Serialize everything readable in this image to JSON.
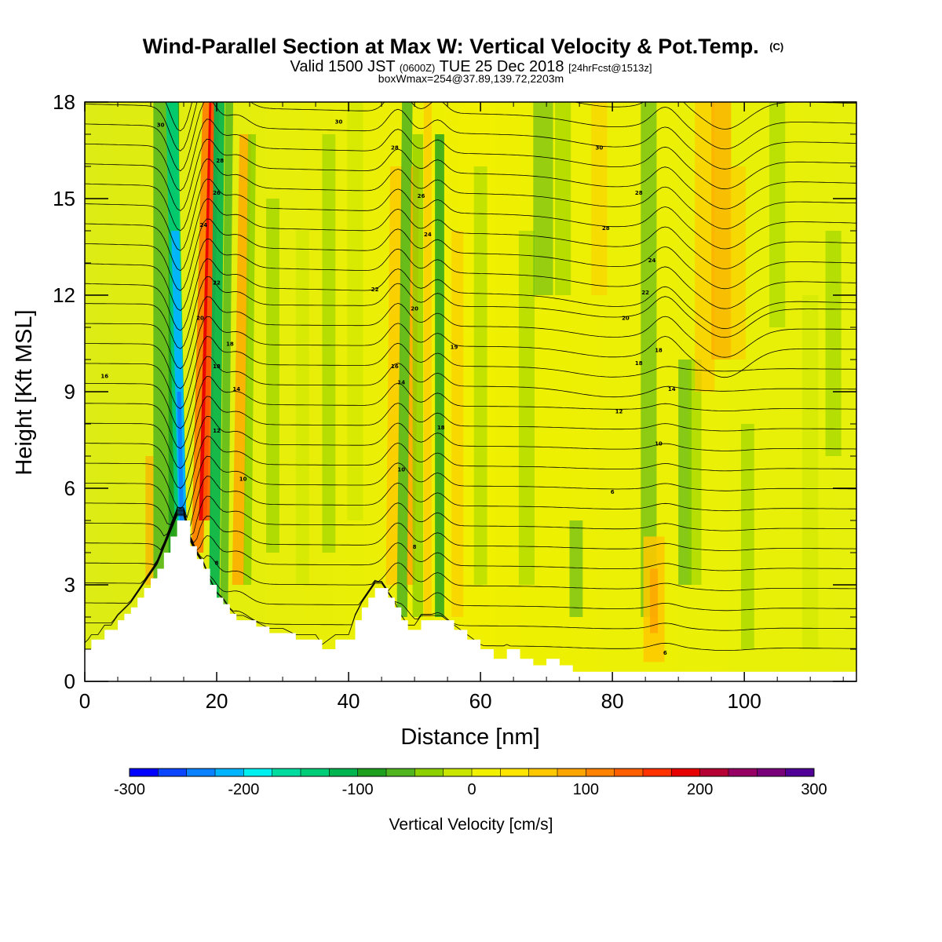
{
  "header": {
    "title_main": "Wind-Parallel Section at Max W: Vertical Velocity & Pot.Temp.",
    "title_mark": "(C)",
    "valid_pre": "Valid 1500 JST",
    "valid_utc": "(0600Z)",
    "valid_post": "TUE 25 Dec 2018",
    "forecast": "[24hrFcst@1513z]",
    "box_info": "boxWmax=254@37.89,139.72,2203m"
  },
  "chart_data": {
    "type": "heatmap",
    "xlabel": "Distance [nm]",
    "ylabel": "Height [Kft MSL]",
    "xlim": [
      0,
      117
    ],
    "ylim": [
      0,
      18
    ],
    "x_ticks": [
      "0",
      "20",
      "40",
      "60",
      "80",
      "100"
    ],
    "y_ticks": [
      "0",
      "3",
      "6",
      "9",
      "12",
      "15",
      "18"
    ],
    "colorbar": {
      "label": "Vertical Velocity [cm/s]",
      "range": [
        -300,
        300
      ],
      "tick_labels": [
        "-300",
        "-200",
        "-100",
        "0",
        "100",
        "200",
        "300"
      ],
      "colors": [
        "#0000ff",
        "#0a46ff",
        "#0a82ff",
        "#00b4ff",
        "#00f0f0",
        "#00dca0",
        "#00cd78",
        "#00b450",
        "#1ea01e",
        "#50b41e",
        "#8cd000",
        "#c8e600",
        "#f0f000",
        "#ffe600",
        "#ffc800",
        "#ffa500",
        "#ff8200",
        "#ff5f00",
        "#ff3200",
        "#e60000",
        "#b40032",
        "#960064",
        "#780078",
        "#500096"
      ]
    },
    "terrain_profile_kft": {
      "x": [
        0,
        1,
        2,
        3,
        4,
        5,
        6,
        7,
        8,
        9,
        10,
        11,
        12,
        13,
        14,
        15,
        16,
        17,
        18,
        19,
        20,
        21,
        22,
        23,
        24,
        26,
        28,
        30,
        32,
        34,
        35,
        36,
        38,
        40,
        41,
        42,
        43,
        44,
        45,
        46,
        47,
        48,
        49,
        50,
        51,
        52,
        54,
        56,
        58,
        60,
        62,
        64,
        66,
        68,
        70,
        72,
        74,
        76,
        80,
        90,
        100,
        110,
        117
      ],
      "z": [
        1.0,
        1.3,
        1.3,
        1.6,
        1.6,
        1.9,
        2.1,
        2.3,
        2.6,
        2.9,
        3.2,
        3.5,
        4.0,
        4.5,
        5.0,
        5.0,
        4.2,
        3.8,
        3.5,
        3.0,
        2.6,
        2.4,
        2.1,
        1.9,
        1.9,
        1.7,
        1.5,
        1.5,
        1.3,
        1.3,
        1.3,
        1.0,
        1.3,
        1.3,
        1.9,
        2.3,
        2.6,
        2.9,
        2.9,
        2.6,
        2.3,
        1.9,
        1.6,
        1.6,
        1.9,
        1.9,
        1.9,
        1.6,
        1.3,
        1.0,
        0.7,
        1.0,
        0.7,
        0.5,
        0.7,
        0.5,
        0.3,
        0.3,
        0.3,
        0.3,
        0.3,
        0.3,
        0.3
      ]
    },
    "theta_contour_labels": [
      "6",
      "8",
      "10",
      "12",
      "14",
      "16",
      "18",
      "19",
      "20",
      "22",
      "24",
      "26",
      "28",
      "30"
    ],
    "updraft_max_cm_s": 254
  }
}
